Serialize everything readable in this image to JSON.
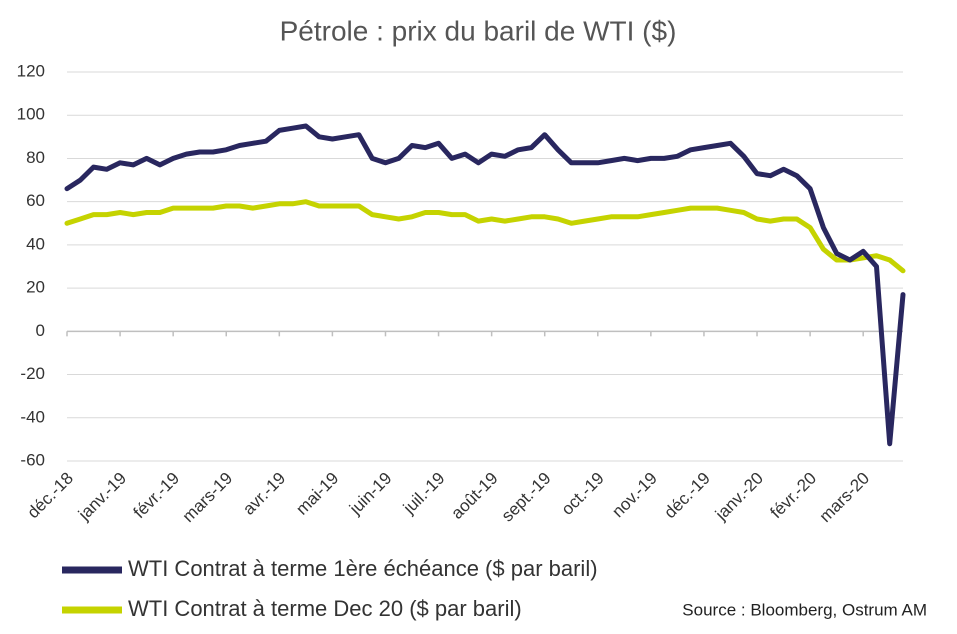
{
  "chart_data": {
    "type": "line",
    "title": "Pétrole : prix du baril de WTI ($)",
    "annotation": "Source : Bloomberg, Ostrum AM",
    "categories": [
      "déc.-18",
      null,
      null,
      null,
      "janv.-19",
      null,
      null,
      null,
      "févr.-19",
      null,
      null,
      null,
      "mars-19",
      null,
      null,
      null,
      "avr.-19",
      null,
      null,
      null,
      "mai-19",
      null,
      null,
      null,
      "juin-19",
      null,
      null,
      null,
      "juil.-19",
      null,
      null,
      null,
      "août-19",
      null,
      null,
      null,
      "sept.-19",
      null,
      null,
      null,
      "oct.-19",
      null,
      null,
      null,
      "nov.-19",
      null,
      null,
      null,
      "déc.-19",
      null,
      null,
      null,
      "janv.-20",
      null,
      null,
      null,
      "févr.-20",
      null,
      null,
      null,
      "mars-20",
      null,
      null,
      null
    ],
    "series": [
      {
        "name": "WTI Contrat à terme 1ère échéance ($ par baril)",
        "color": "#29275f",
        "values": [
          66,
          70,
          76,
          75,
          78,
          77,
          80,
          77,
          80,
          82,
          83,
          83,
          84,
          86,
          87,
          88,
          93,
          94,
          95,
          90,
          89,
          90,
          91,
          80,
          78,
          80,
          86,
          85,
          87,
          80,
          82,
          78,
          82,
          81,
          84,
          85,
          91,
          84,
          78,
          78,
          78,
          79,
          80,
          79,
          80,
          80,
          81,
          84,
          85,
          86,
          87,
          81,
          73,
          72,
          75,
          72,
          66,
          48,
          36,
          33,
          37,
          30,
          -52,
          17
        ]
      },
      {
        "name": "WTI Contrat à terme Dec 20 ($ par baril)",
        "color": "#c5d300",
        "values": [
          50,
          52,
          54,
          54,
          55,
          54,
          55,
          55,
          57,
          57,
          57,
          57,
          58,
          58,
          57,
          58,
          59,
          59,
          60,
          58,
          58,
          58,
          58,
          54,
          53,
          52,
          53,
          55,
          55,
          54,
          54,
          51,
          52,
          51,
          52,
          53,
          53,
          52,
          50,
          51,
          52,
          53,
          53,
          53,
          54,
          55,
          56,
          57,
          57,
          57,
          56,
          55,
          52,
          51,
          52,
          52,
          48,
          38,
          33,
          33,
          34,
          35,
          33,
          28
        ]
      }
    ],
    "ylim": [
      -60,
      120
    ],
    "yticks": [
      -60,
      -40,
      -20,
      0,
      20,
      40,
      60,
      80,
      100,
      120
    ],
    "grid": true
  }
}
